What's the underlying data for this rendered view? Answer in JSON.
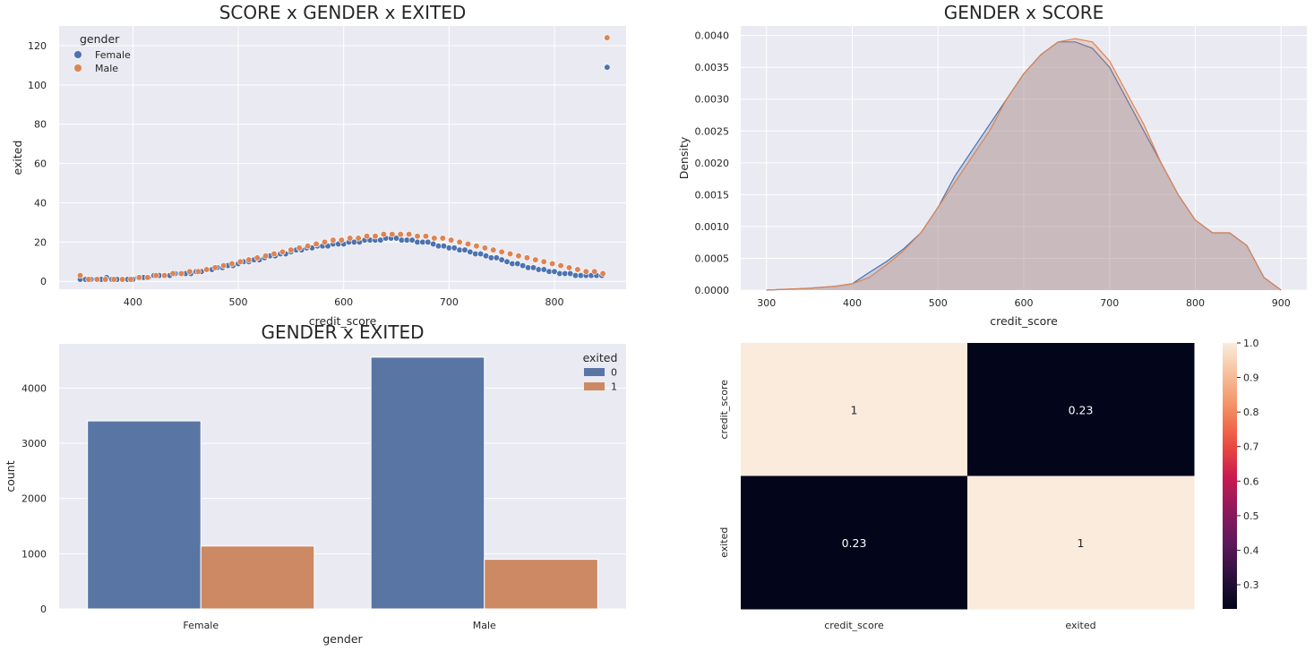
{
  "chart_data": [
    {
      "id": "scatter",
      "type": "scatter",
      "title": "SCORE x GENDER x EXITED",
      "xlabel": "credit_score",
      "ylabel": "exited",
      "xlim": [
        330,
        868
      ],
      "ylim": [
        -4,
        130
      ],
      "xticks": [
        400,
        500,
        600,
        700,
        800
      ],
      "yticks": [
        0,
        20,
        40,
        60,
        80,
        100,
        120
      ],
      "grid": true,
      "legend": {
        "title": "gender",
        "position": "top-left"
      },
      "series": [
        {
          "name": "Female",
          "color": "#4c72b0",
          "x": [
            350,
            355,
            360,
            365,
            370,
            375,
            380,
            385,
            390,
            395,
            400,
            405,
            410,
            415,
            420,
            425,
            430,
            435,
            440,
            445,
            450,
            455,
            460,
            465,
            470,
            475,
            480,
            485,
            490,
            495,
            500,
            505,
            510,
            515,
            520,
            525,
            530,
            535,
            540,
            545,
            550,
            555,
            560,
            565,
            570,
            575,
            580,
            585,
            590,
            595,
            600,
            605,
            610,
            615,
            620,
            625,
            630,
            635,
            640,
            645,
            650,
            655,
            660,
            665,
            670,
            675,
            680,
            685,
            690,
            695,
            700,
            705,
            710,
            715,
            720,
            725,
            730,
            735,
            740,
            745,
            750,
            755,
            760,
            765,
            770,
            775,
            780,
            785,
            790,
            795,
            800,
            805,
            810,
            815,
            820,
            825,
            830,
            835,
            840,
            845,
            850
          ],
          "y": [
            1,
            1,
            1,
            1,
            1,
            2,
            1,
            1,
            1,
            1,
            1,
            2,
            2,
            2,
            3,
            3,
            3,
            3,
            4,
            4,
            4,
            4,
            5,
            5,
            6,
            6,
            7,
            7,
            8,
            8,
            9,
            10,
            10,
            11,
            11,
            12,
            13,
            13,
            14,
            14,
            15,
            16,
            16,
            17,
            17,
            18,
            18,
            18,
            19,
            19,
            19,
            20,
            20,
            20,
            21,
            21,
            21,
            21,
            22,
            22,
            22,
            21,
            21,
            21,
            20,
            20,
            20,
            19,
            18,
            18,
            17,
            17,
            16,
            16,
            15,
            14,
            14,
            13,
            12,
            12,
            11,
            10,
            9,
            9,
            8,
            7,
            7,
            6,
            6,
            5,
            5,
            4,
            4,
            4,
            3,
            3,
            3,
            3,
            3,
            3,
            109
          ]
        },
        {
          "name": "Male",
          "color": "#dd8452",
          "x": [
            350,
            358,
            366,
            374,
            382,
            390,
            398,
            406,
            414,
            422,
            430,
            438,
            446,
            454,
            462,
            470,
            478,
            486,
            494,
            502,
            510,
            518,
            526,
            534,
            542,
            550,
            558,
            566,
            574,
            582,
            590,
            598,
            606,
            614,
            622,
            630,
            638,
            646,
            654,
            662,
            670,
            678,
            686,
            694,
            702,
            710,
            718,
            726,
            734,
            742,
            750,
            758,
            766,
            774,
            782,
            790,
            798,
            806,
            814,
            822,
            830,
            838,
            846,
            850
          ],
          "y": [
            3,
            1,
            1,
            1,
            1,
            1,
            1,
            2,
            2,
            3,
            3,
            4,
            4,
            5,
            5,
            6,
            7,
            8,
            9,
            10,
            11,
            12,
            13,
            14,
            15,
            16,
            17,
            18,
            19,
            20,
            21,
            21,
            22,
            22,
            23,
            23,
            24,
            24,
            24,
            24,
            23,
            23,
            22,
            22,
            21,
            20,
            19,
            18,
            17,
            16,
            15,
            14,
            13,
            12,
            11,
            10,
            9,
            8,
            7,
            6,
            5,
            5,
            4,
            124
          ]
        }
      ]
    },
    {
      "id": "kde",
      "type": "area",
      "title": "GENDER x SCORE",
      "xlabel": "credit_score",
      "ylabel": "Density",
      "xlim": [
        270,
        930
      ],
      "ylim": [
        0,
        0.00415
      ],
      "xticks": [
        300,
        400,
        500,
        600,
        700,
        800,
        900
      ],
      "yticks": [
        0,
        0.0005,
        0.001,
        0.0015,
        0.002,
        0.0025,
        0.003,
        0.0035,
        0.004
      ],
      "ytick_labels": [
        "0.0000",
        "0.0005",
        "0.0010",
        "0.0015",
        "0.0020",
        "0.0025",
        "0.0030",
        "0.0035",
        "0.0040"
      ],
      "grid": true,
      "x": [
        300,
        350,
        380,
        400,
        420,
        440,
        460,
        480,
        500,
        520,
        540,
        560,
        580,
        600,
        620,
        640,
        660,
        680,
        700,
        720,
        740,
        760,
        780,
        800,
        820,
        840,
        860,
        880,
        900
      ],
      "series": [
        {
          "name": "Female",
          "color": "#4c72b0",
          "values": [
            0,
            3e-05,
            6e-05,
            0.0001,
            0.00028,
            0.00045,
            0.00065,
            0.0009,
            0.0013,
            0.0018,
            0.0022,
            0.0026,
            0.003,
            0.0034,
            0.0037,
            0.0039,
            0.0039,
            0.0038,
            0.0035,
            0.003,
            0.0025,
            0.002,
            0.0015,
            0.0011,
            0.0009,
            0.0009,
            0.0007,
            0.0002,
            0
          ]
        },
        {
          "name": "Male",
          "color": "#dd8452",
          "values": [
            0,
            3e-05,
            6e-05,
            0.0001,
            0.0002,
            0.0004,
            0.00062,
            0.0009,
            0.0013,
            0.0017,
            0.0021,
            0.0025,
            0.003,
            0.0034,
            0.0037,
            0.0039,
            0.00395,
            0.0039,
            0.0036,
            0.0031,
            0.0026,
            0.002,
            0.0015,
            0.0011,
            0.0009,
            0.0009,
            0.0007,
            0.0002,
            0
          ]
        }
      ]
    },
    {
      "id": "bars",
      "type": "bar",
      "title": "GENDER x EXITED",
      "xlabel": "gender",
      "ylabel": "count",
      "categories": [
        "Female",
        "Male"
      ],
      "ylim": [
        0,
        4800
      ],
      "yticks": [
        0,
        1000,
        2000,
        3000,
        4000
      ],
      "grid": true,
      "legend": {
        "title": "exited",
        "position": "top-right"
      },
      "series": [
        {
          "name": "0",
          "color": "#5975a4",
          "values": [
            3404,
            4559
          ]
        },
        {
          "name": "1",
          "color": "#cc8963",
          "values": [
            1139,
            898
          ]
        }
      ]
    },
    {
      "id": "heatmap",
      "type": "heatmap",
      "rows": [
        "credit_score",
        "exited"
      ],
      "cols": [
        "credit_score",
        "exited"
      ],
      "values": [
        [
          1,
          0.23
        ],
        [
          0.23,
          1
        ]
      ],
      "annotations": [
        "1",
        "0.23",
        "0.23",
        "1"
      ],
      "colorbar": {
        "min": 0.23,
        "max": 1.0,
        "ticks": [
          0.3,
          0.4,
          0.5,
          0.6,
          0.7,
          0.8,
          0.9,
          1.0
        ],
        "tick_labels": [
          "0.3",
          "0.4",
          "0.5",
          "0.6",
          "0.7",
          "0.8",
          "0.9",
          "1.0"
        ],
        "colormap": "rocket"
      }
    }
  ]
}
